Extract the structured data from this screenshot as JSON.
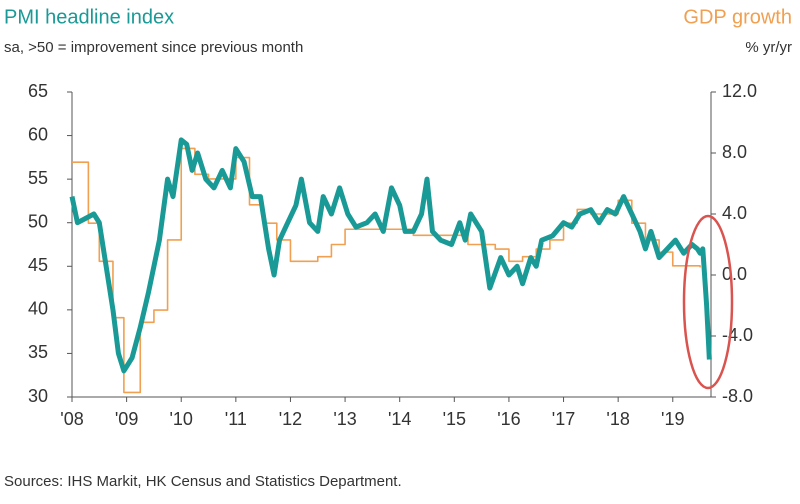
{
  "chart_data": {
    "type": "line",
    "title": "PMI headline index",
    "subtitle": "sa, >50 = improvement since previous month",
    "y2_title": "GDP growth",
    "y2_subtitle": "% yr/yr",
    "source": "Sources: IHS Markit, HK Census and Statistics Department.",
    "xlim": [
      2008,
      2019.7
    ],
    "xticks": [
      {
        "value": 2008,
        "label": "'08"
      },
      {
        "value": 2009,
        "label": "'09"
      },
      {
        "value": 2010,
        "label": "'10"
      },
      {
        "value": 2011,
        "label": "'11"
      },
      {
        "value": 2012,
        "label": "'12"
      },
      {
        "value": 2013,
        "label": "'13"
      },
      {
        "value": 2014,
        "label": "'14"
      },
      {
        "value": 2015,
        "label": "'15"
      },
      {
        "value": 2016,
        "label": "'16"
      },
      {
        "value": 2017,
        "label": "'17"
      },
      {
        "value": 2018,
        "label": "'18"
      },
      {
        "value": 2019,
        "label": "'19"
      }
    ],
    "ylim": [
      30,
      65
    ],
    "yticks": [
      30,
      35,
      40,
      45,
      50,
      55,
      60,
      65
    ],
    "y2lim": [
      -8,
      12
    ],
    "y2ticks": [
      {
        "value": -8,
        "label": "-8.0"
      },
      {
        "value": -4,
        "label": "-4.0"
      },
      {
        "value": 0,
        "label": "0.0"
      },
      {
        "value": 4,
        "label": "4.0"
      },
      {
        "value": 8,
        "label": "8.0"
      },
      {
        "value": 12,
        "label": "12.0"
      }
    ],
    "series": [
      {
        "name": "PMI headline index",
        "color": "#1a9a96",
        "axis": "y",
        "x": [
          2008.0,
          2008.1,
          2008.25,
          2008.4,
          2008.5,
          2008.6,
          2008.75,
          2008.85,
          2008.95,
          2009.1,
          2009.25,
          2009.4,
          2009.6,
          2009.75,
          2009.85,
          2010.0,
          2010.1,
          2010.2,
          2010.3,
          2010.45,
          2010.6,
          2010.75,
          2010.9,
          2011.0,
          2011.15,
          2011.3,
          2011.45,
          2011.6,
          2011.7,
          2011.8,
          2011.95,
          2012.1,
          2012.2,
          2012.35,
          2012.5,
          2012.6,
          2012.75,
          2012.9,
          2013.05,
          2013.2,
          2013.4,
          2013.55,
          2013.7,
          2013.85,
          2014.0,
          2014.1,
          2014.25,
          2014.4,
          2014.5,
          2014.6,
          2014.75,
          2014.95,
          2015.1,
          2015.2,
          2015.3,
          2015.5,
          2015.65,
          2015.85,
          2016.0,
          2016.15,
          2016.25,
          2016.4,
          2016.5,
          2016.6,
          2016.8,
          2017.0,
          2017.15,
          2017.3,
          2017.5,
          2017.65,
          2017.8,
          2017.95,
          2018.1,
          2018.25,
          2018.4,
          2018.5,
          2018.6,
          2018.75,
          2018.9,
          2019.05,
          2019.2,
          2019.35,
          2019.45,
          2019.5,
          2019.55,
          2019.62,
          2019.67
        ],
        "values": [
          53,
          50,
          50.5,
          51,
          50,
          46,
          40,
          35,
          33,
          34.5,
          38,
          42,
          48,
          55,
          53,
          59.5,
          59,
          56,
          58,
          55,
          54,
          56,
          54,
          58.5,
          57,
          53,
          53,
          47,
          44,
          48,
          50,
          52,
          55,
          50,
          49,
          53,
          51,
          54,
          51,
          49.5,
          50,
          51,
          49,
          54,
          52,
          49,
          49,
          51,
          55,
          49,
          48,
          47.5,
          50,
          48,
          51,
          49,
          42.5,
          46,
          44,
          45,
          43,
          46,
          45,
          48,
          48.5,
          50,
          49.5,
          51,
          51.5,
          50,
          51.5,
          51,
          53,
          51,
          49,
          47,
          49,
          46,
          47,
          48,
          46.5,
          47.5,
          47,
          46.5,
          47,
          40.5,
          34.3
        ]
      },
      {
        "name": "GDP growth",
        "color": "#f0a050",
        "axis": "y2",
        "step": true,
        "x": [
          2008.0,
          2008.3,
          2008.5,
          2008.75,
          2008.95,
          2009.25,
          2009.5,
          2009.75,
          2010.0,
          2010.25,
          2010.5,
          2011.0,
          2011.25,
          2011.5,
          2011.75,
          2012.0,
          2012.5,
          2012.75,
          2013.0,
          2014.25,
          2015.0,
          2015.25,
          2015.75,
          2016.0,
          2016.25,
          2016.5,
          2016.75,
          2017.0,
          2017.25,
          2017.5,
          2018.0,
          2018.25,
          2018.5,
          2018.75,
          2019.0,
          2019.5
        ],
        "values": [
          7.4,
          3.4,
          0.9,
          -2.8,
          -7.7,
          -3.1,
          -2.3,
          2.3,
          8.3,
          6.6,
          6.3,
          7.7,
          4.6,
          3.4,
          2.3,
          0.9,
          1.2,
          2.0,
          3.0,
          2.6,
          2.6,
          2.0,
          1.7,
          0.9,
          1.2,
          1.7,
          2.3,
          3.4,
          4.3,
          4.0,
          4.9,
          3.4,
          2.3,
          1.5,
          0.6,
          0.5
        ]
      }
    ]
  }
}
